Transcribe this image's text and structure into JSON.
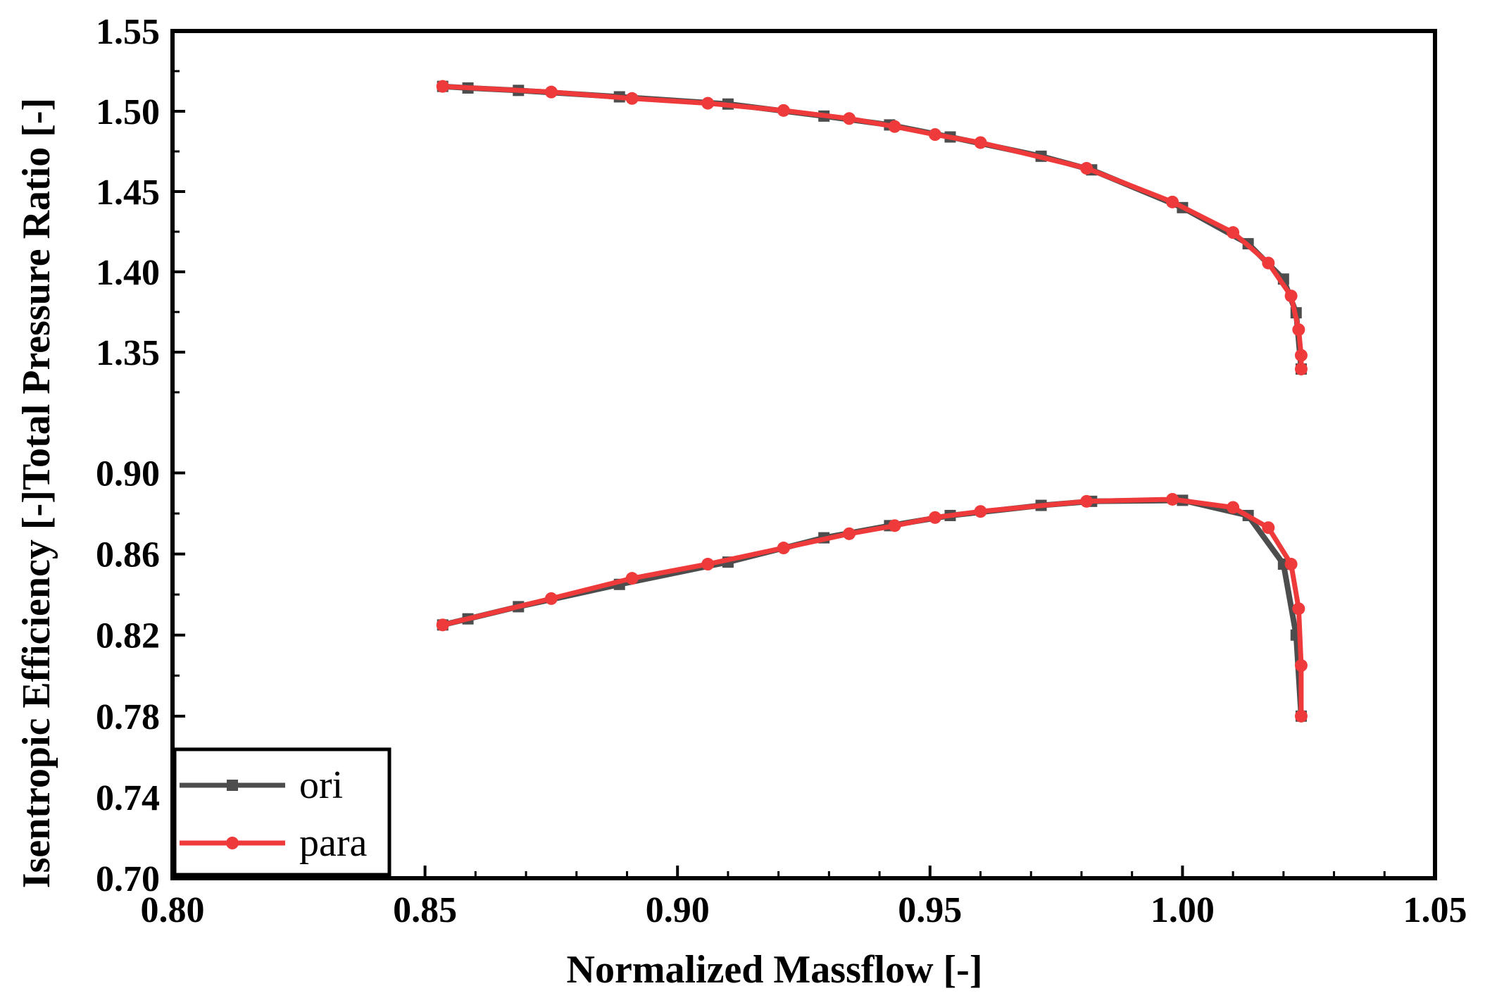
{
  "chart_data": {
    "type": "line",
    "title": "",
    "xlabel": "Normalized Massflow [-]",
    "ylabel_top": "Total Pressure Ratio [-]",
    "ylabel_bottom": "Isentropic Efficiency [-]",
    "xlim": [
      0.8,
      1.05
    ],
    "x_ticks": [
      "0.80",
      "0.85",
      "0.90",
      "0.95",
      "1.00",
      "1.05"
    ],
    "top_panel": {
      "ylim": [
        1.3,
        1.55
      ],
      "y_ticks": [
        "1.35",
        "1.40",
        "1.45",
        "1.50",
        "1.55"
      ],
      "series": [
        {
          "name": "ori",
          "color": "#4d4d4d",
          "marker": "square",
          "points": [
            [
              0.8535,
              1.5155
            ],
            [
              0.8585,
              1.5145
            ],
            [
              0.8685,
              1.513
            ],
            [
              0.8885,
              1.509
            ],
            [
              0.91,
              1.5045
            ],
            [
              0.929,
              1.497
            ],
            [
              0.942,
              1.4915
            ],
            [
              0.954,
              1.484
            ],
            [
              0.972,
              1.472
            ],
            [
              0.982,
              1.4635
            ],
            [
              1.0,
              1.44
            ],
            [
              1.013,
              1.4175
            ],
            [
              1.02,
              1.3955
            ],
            [
              1.0225,
              1.3745
            ],
            [
              1.0235,
              1.3395
            ]
          ]
        },
        {
          "name": "para",
          "color": "#ee3a3a",
          "marker": "circle",
          "points": [
            [
              0.8535,
              1.5155
            ],
            [
              0.875,
              1.512
            ],
            [
              0.891,
              1.508
            ],
            [
              0.906,
              1.505
            ],
            [
              0.921,
              1.5005
            ],
            [
              0.934,
              1.4955
            ],
            [
              0.943,
              1.4905
            ],
            [
              0.951,
              1.4855
            ],
            [
              0.96,
              1.4805
            ],
            [
              0.981,
              1.4645
            ],
            [
              0.998,
              1.4435
            ],
            [
              1.01,
              1.4245
            ],
            [
              1.017,
              1.4055
            ],
            [
              1.0215,
              1.385
            ],
            [
              1.023,
              1.364
            ],
            [
              1.0235,
              1.348
            ],
            [
              1.0235,
              1.3395
            ]
          ]
        }
      ]
    },
    "bottom_panel": {
      "ylim": [
        0.7,
        0.92
      ],
      "y_ticks": [
        "0.70",
        "0.74",
        "0.78",
        "0.82",
        "0.86",
        "0.90"
      ],
      "series": [
        {
          "name": "ori",
          "color": "#4d4d4d",
          "marker": "square",
          "points": [
            [
              0.8535,
              0.825
            ],
            [
              0.8585,
              0.828
            ],
            [
              0.8685,
              0.834
            ],
            [
              0.8885,
              0.845
            ],
            [
              0.91,
              0.856
            ],
            [
              0.929,
              0.868
            ],
            [
              0.942,
              0.874
            ],
            [
              0.954,
              0.879
            ],
            [
              0.972,
              0.884
            ],
            [
              0.982,
              0.886
            ],
            [
              1.0,
              0.8865
            ],
            [
              1.013,
              0.879
            ],
            [
              1.02,
              0.855
            ],
            [
              1.0225,
              0.82
            ],
            [
              1.0235,
              0.78
            ]
          ]
        },
        {
          "name": "para",
          "color": "#ee3a3a",
          "marker": "circle",
          "points": [
            [
              0.8535,
              0.825
            ],
            [
              0.875,
              0.838
            ],
            [
              0.891,
              0.848
            ],
            [
              0.906,
              0.855
            ],
            [
              0.921,
              0.863
            ],
            [
              0.934,
              0.87
            ],
            [
              0.943,
              0.874
            ],
            [
              0.951,
              0.878
            ],
            [
              0.96,
              0.881
            ],
            [
              0.981,
              0.886
            ],
            [
              0.998,
              0.887
            ],
            [
              1.01,
              0.883
            ],
            [
              1.017,
              0.873
            ],
            [
              1.0215,
              0.855
            ],
            [
              1.023,
              0.833
            ],
            [
              1.0235,
              0.805
            ],
            [
              1.0235,
              0.78
            ]
          ]
        }
      ]
    },
    "legend": {
      "position": "bottom-left",
      "entries": [
        {
          "label": "ori",
          "color": "#4d4d4d",
          "marker": "square"
        },
        {
          "label": "para",
          "color": "#ee3a3a",
          "marker": "circle"
        }
      ]
    }
  }
}
